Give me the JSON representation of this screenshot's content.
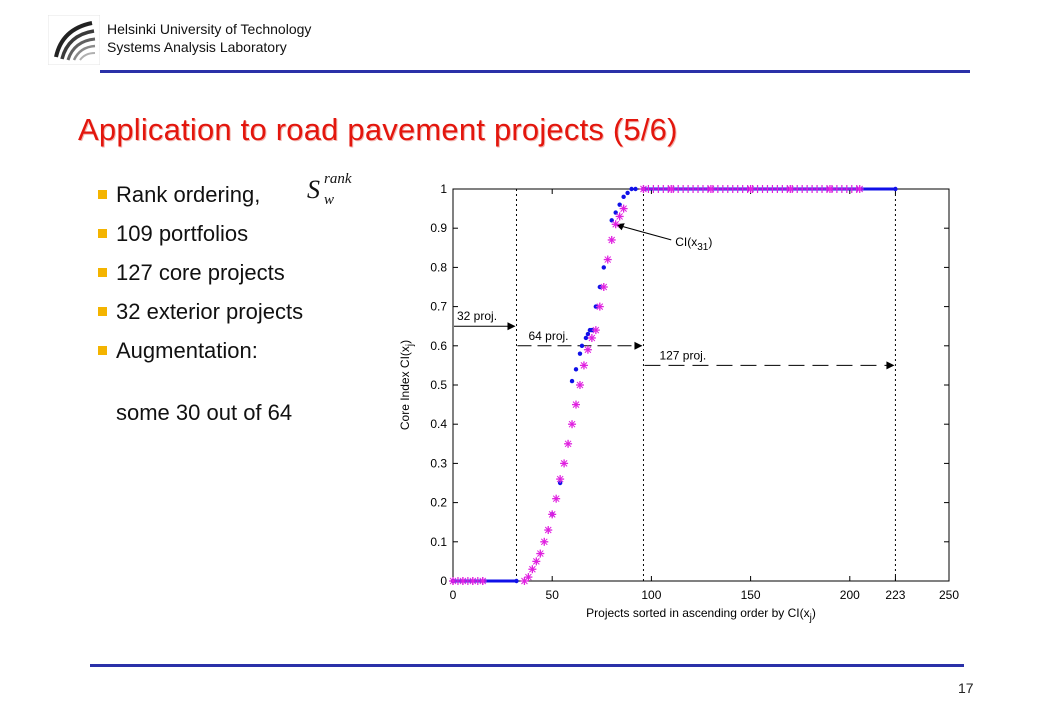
{
  "header": {
    "org_line1": "Helsinki University of Technology",
    "org_line2": "Systems Analysis Laboratory",
    "rule_color": "#2a31a8"
  },
  "title": "Application to road pavement projects (5/6)",
  "bullets": [
    "Rank ordering,",
    "109 portfolios",
    "127 core projects",
    "32 exterior projects",
    "Augmentation:"
  ],
  "bullet_continuation": "some 30 out of 64",
  "math": {
    "base": "S",
    "superscript": "rank",
    "subscript": "w"
  },
  "page_number": "17",
  "chart_data": {
    "type": "scatter",
    "xlabel": "Projects sorted in ascending order by CI(x",
    "xlabel_sub": "j",
    "xlabel_end": ")",
    "ylabel": "Core Index CI(x",
    "ylabel_sub": "j",
    "ylabel_end": ")",
    "xlim": [
      0,
      250
    ],
    "ylim": [
      0,
      1
    ],
    "xticks": [
      "0",
      "50",
      "100",
      "150",
      "200",
      "223",
      "250"
    ],
    "xtick_values": [
      0,
      50,
      100,
      150,
      200,
      223,
      250
    ],
    "yticks": [
      "0",
      "0.1",
      "0.2",
      "0.3",
      "0.4",
      "0.5",
      "0.6",
      "0.7",
      "0.8",
      "0.9",
      "1"
    ],
    "ytick_values": [
      0,
      0.1,
      0.2,
      0.3,
      0.4,
      0.5,
      0.6,
      0.7,
      0.8,
      0.9,
      1
    ],
    "vlines": [
      32,
      96,
      223
    ],
    "annotations": {
      "proj32": {
        "label": "32 proj.",
        "y": 0.65,
        "x_from": 0,
        "x_to": 32
      },
      "proj64": {
        "label": "64 proj.",
        "y": 0.6,
        "x_from": 32,
        "x_to": 96
      },
      "proj127": {
        "label": "127 proj.",
        "y": 0.55,
        "x_from": 96,
        "x_to": 223
      },
      "ci31": {
        "label": "CI(x",
        "sub": "31",
        "end": ")",
        "x": 112,
        "y": 0.86,
        "target_x": 80,
        "target_y": 0.91
      }
    },
    "series": [
      {
        "color": "#1010e8",
        "x": [
          0,
          32,
          50,
          54,
          60,
          62,
          64,
          65,
          67,
          68,
          69,
          70,
          72,
          74,
          76,
          80,
          82,
          84,
          86,
          88,
          90,
          92,
          96,
          223
        ],
        "y": [
          0,
          0,
          0.17,
          0.25,
          0.51,
          0.54,
          0.58,
          0.6,
          0.62,
          0.63,
          0.64,
          0.64,
          0.7,
          0.75,
          0.8,
          0.92,
          0.94,
          0.96,
          0.98,
          0.99,
          1,
          1,
          1,
          1
        ]
      },
      {
        "color": "#e020e0",
        "x": [
          0,
          5,
          10,
          15,
          36,
          38,
          40,
          42,
          44,
          46,
          48,
          50,
          52,
          54,
          56,
          58,
          60,
          62,
          64,
          66,
          68,
          70,
          72,
          74,
          76,
          78,
          80,
          82,
          84,
          86,
          96,
          110,
          130,
          150,
          170,
          190,
          205
        ],
        "y": [
          0,
          0,
          0,
          0,
          0,
          0.01,
          0.03,
          0.05,
          0.07,
          0.1,
          0.13,
          0.17,
          0.21,
          0.26,
          0.3,
          0.35,
          0.4,
          0.45,
          0.5,
          0.55,
          0.59,
          0.62,
          0.64,
          0.7,
          0.75,
          0.82,
          0.87,
          0.91,
          0.93,
          0.95,
          1,
          1,
          1,
          1,
          1,
          1,
          1
        ]
      }
    ]
  }
}
